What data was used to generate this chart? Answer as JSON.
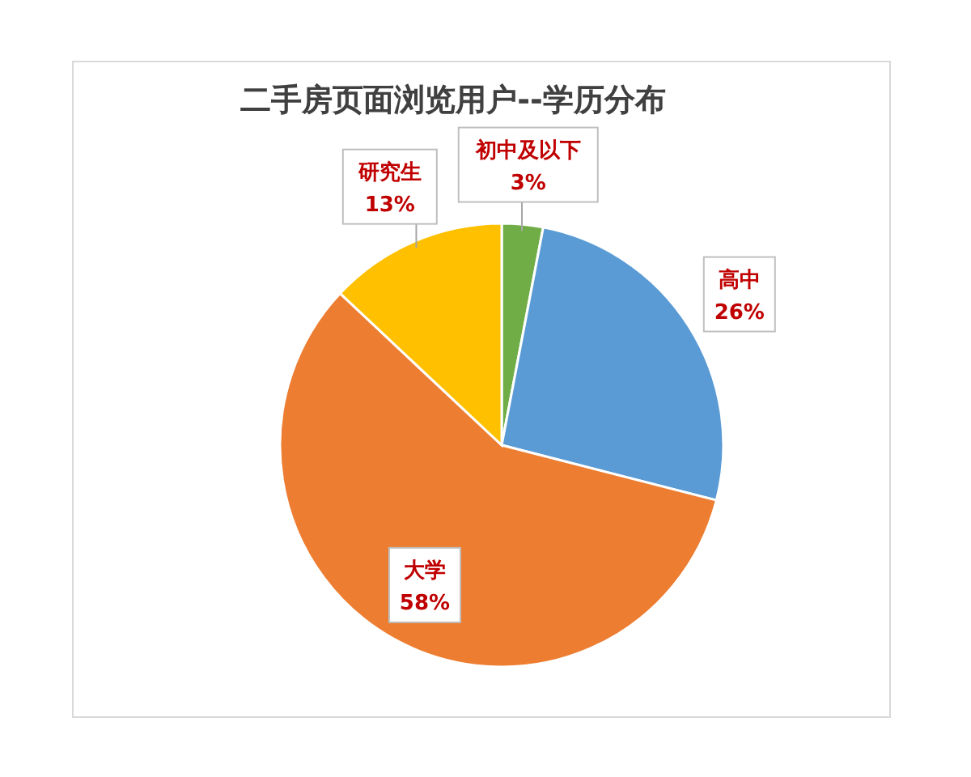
{
  "chart_data": {
    "type": "pie",
    "title": "二手房页面浏览用户--学历分布",
    "categories": [
      "初中及以下",
      "高中",
      "大学",
      "研究生"
    ],
    "values": [
      3,
      26,
      58,
      13
    ],
    "value_labels": [
      "3%",
      "26%",
      "58%",
      "13%"
    ],
    "colors": [
      "#70ad47",
      "#5b9bd5",
      "#ed7d31",
      "#ffc000"
    ]
  }
}
